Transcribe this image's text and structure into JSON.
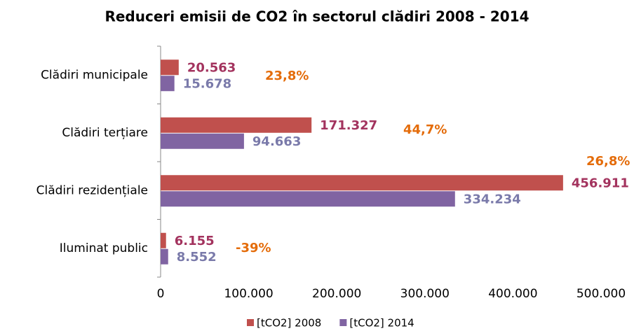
{
  "chart_data": {
    "type": "bar",
    "orientation": "horizontal",
    "title": "Reduceri emisii de CO2 în sectorul clădiri 2008 - 2014",
    "categories": [
      "Clădiri municipale",
      "Clădiri terțiare",
      "Clădiri rezidențiale",
      "Iluminat public"
    ],
    "series": [
      {
        "name": "[tCO2] 2008",
        "color": "#c0504d",
        "label_color": "#a3335e",
        "values": [
          20563,
          171327,
          456911,
          6155
        ],
        "value_labels": [
          "20.563",
          "171.327",
          "456.911",
          "6.155"
        ]
      },
      {
        "name": "[tCO2] 2014",
        "color": "#8064a2",
        "label_color": "#7a7aaa",
        "values": [
          15678,
          94663,
          334234,
          8552
        ],
        "value_labels": [
          "15.678",
          "94.663",
          "334.234",
          "8.552"
        ]
      }
    ],
    "annotations": [
      "23,8%",
      "44,7%",
      "26,8%",
      "-39%"
    ],
    "annotation_color": "#e46c0a",
    "xlim": [
      0,
      500000
    ],
    "xticks": [
      0,
      {
        "value": 100000,
        "label": "100.000"
      },
      {
        "value": 200000,
        "label": "200.000"
      },
      {
        "value": 300000,
        "label": "300.000"
      },
      {
        "value": 400000,
        "label": "400.000"
      },
      {
        "value": 500000,
        "label": "500.000"
      }
    ],
    "grid": false,
    "legend": "bottom"
  }
}
